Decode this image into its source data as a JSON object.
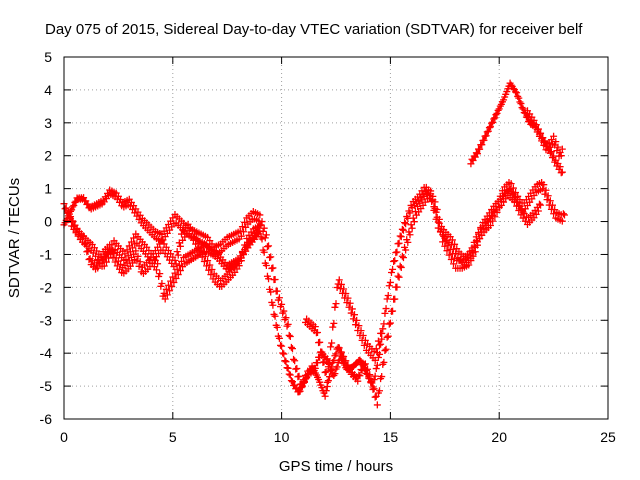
{
  "chart_data": {
    "type": "scatter",
    "title": "Day 075 of 2015, Sidereal Day-to-day VTEC variation (SDTVAR) for receiver belf",
    "xlabel": "GPS time / hours",
    "ylabel": "SDTVAR / TECUs",
    "xlim": [
      0,
      25
    ],
    "ylim": [
      -6,
      5
    ],
    "xticks": [
      0,
      5,
      10,
      15,
      20,
      25
    ],
    "yticks": [
      -6,
      -5,
      -4,
      -3,
      -2,
      -1,
      0,
      1,
      2,
      3,
      4,
      5
    ],
    "xtick_labels": [
      "0",
      "5",
      "10",
      "15",
      "20",
      "25"
    ],
    "ytick_labels": [
      "-6",
      "-5",
      "-4",
      "-3",
      "-2",
      "-1",
      "0",
      "1",
      "2",
      "3",
      "4",
      "5"
    ],
    "grid": true,
    "grid_style": "dotted",
    "marker": "plus",
    "color": "#ff0000",
    "series": [
      {
        "x": [
          0.0,
          0.3,
          0.6,
          0.9,
          1.2,
          1.5,
          1.8,
          2.1,
          2.4,
          2.7,
          3.0,
          3.3,
          3.6,
          3.9,
          4.2,
          4.5,
          4.8,
          5.1,
          5.4,
          5.7,
          6.0,
          6.3,
          6.6,
          6.9,
          7.2,
          7.5,
          7.8,
          8.1,
          8.4,
          8.7,
          9.0,
          9.3,
          9.6,
          9.8,
          10.0,
          10.3,
          10.6,
          10.9,
          11.2,
          11.5,
          11.8,
          12.1,
          12.4,
          12.7,
          13.0,
          13.3,
          13.6,
          13.9,
          14.2,
          14.5,
          14.8,
          15.1,
          15.4,
          15.7,
          16.0,
          16.3,
          16.6,
          16.9,
          17.2,
          17.5,
          17.8,
          18.1,
          18.4,
          18.7,
          19.0,
          19.3,
          19.6,
          19.9,
          20.2,
          20.5,
          20.8,
          21.1,
          21.4,
          21.7,
          22.0,
          22.3,
          22.6,
          22.9,
          23.0
        ],
        "y": [
          -0.1,
          0.3,
          0.7,
          0.7,
          0.4,
          0.5,
          0.6,
          0.9,
          0.8,
          0.5,
          0.6,
          0.3,
          0.0,
          -0.2,
          -0.4,
          -0.5,
          -0.2,
          0.1,
          -0.1,
          -0.3,
          -0.4,
          -0.5,
          -0.6,
          -0.9,
          -0.8,
          -0.6,
          -0.5,
          -0.4,
          0.0,
          0.2,
          0.1,
          -0.5,
          -1.5,
          -2.2,
          -2.6,
          -3.2,
          -4.3,
          -5.0,
          -4.6,
          -4.5,
          -4.0,
          -4.2,
          -4.7,
          -4.1,
          -4.5,
          -4.4,
          -4.2,
          -4.6,
          -5.0,
          -4.0,
          -2.6,
          -1.4,
          -0.6,
          0.0,
          0.5,
          0.7,
          1.0,
          0.7,
          -0.1,
          -0.4,
          -0.6,
          -1.0,
          -1.2,
          -1.0,
          -0.5,
          -0.2,
          0.0,
          0.4,
          0.9,
          1.1,
          0.7,
          0.4,
          0.7,
          1.0,
          1.1,
          0.6,
          0.2,
          0.1,
          0.2
        ]
      },
      {
        "x": [
          0.0,
          0.3,
          0.6,
          0.9,
          1.2,
          1.5,
          1.8,
          2.1,
          2.4,
          2.7,
          3.0,
          3.3,
          3.6,
          3.9,
          4.2,
          4.5,
          4.8,
          5.1,
          5.4,
          5.7,
          6.0,
          6.3,
          6.6,
          6.9,
          7.2,
          7.5,
          7.8,
          8.1,
          8.4,
          8.7,
          9.0,
          9.3,
          9.6,
          9.9,
          10.2,
          10.5,
          10.8,
          11.1,
          11.4,
          11.7,
          12.0,
          12.3,
          12.6,
          12.9,
          13.2,
          13.5,
          13.8,
          14.1,
          14.4,
          14.7,
          15.0,
          15.3,
          15.6,
          15.9,
          16.2,
          16.5,
          16.8,
          17.1,
          17.4,
          17.7,
          18.0,
          18.3,
          18.6,
          18.9,
          19.2,
          19.5,
          19.8,
          20.1,
          20.4,
          20.7,
          21.0,
          21.3,
          21.6,
          21.9
        ],
        "y": [
          0.5,
          0.1,
          -0.3,
          -0.5,
          -1.2,
          -1.4,
          -1.0,
          -0.8,
          -1.2,
          -1.5,
          -1.3,
          -1.0,
          -1.5,
          -1.3,
          -1.0,
          -0.7,
          -1.0,
          -1.3,
          -0.5,
          -0.2,
          -0.5,
          -0.9,
          -1.3,
          -1.7,
          -1.9,
          -1.7,
          -1.5,
          -1.2,
          -0.6,
          -0.3,
          -0.2,
          -1.4,
          -2.6,
          -3.6,
          -4.3,
          -4.9,
          -5.2,
          -4.8,
          -4.4,
          -4.8,
          -5.3,
          -4.4,
          -3.8,
          -4.2,
          -4.6,
          -4.8,
          -4.3,
          -4.8,
          -5.5,
          -4.2,
          -3.0,
          -1.9,
          -1.0,
          -0.3,
          0.3,
          0.6,
          0.9,
          0.4,
          -0.5,
          -0.9,
          -1.3,
          -1.3,
          -1.2,
          -0.8,
          -0.2,
          0.1,
          0.4,
          0.6,
          0.9,
          0.7,
          0.3,
          0.0,
          0.2,
          0.5
        ]
      },
      {
        "x": [
          0.3,
          0.8,
          1.3,
          1.8,
          2.3,
          2.8,
          3.3,
          3.8,
          4.3,
          4.6,
          5.0,
          5.5,
          6.0,
          6.5,
          7.0,
          7.5,
          8.0,
          8.5,
          9.0
        ],
        "y": [
          0.0,
          -0.5,
          -0.8,
          -1.3,
          -0.7,
          -1.1,
          -0.5,
          -0.9,
          -1.4,
          -2.3,
          -1.8,
          -1.2,
          -1.0,
          -0.8,
          -1.0,
          -1.4,
          -1.2,
          -0.7,
          -0.3
        ]
      },
      {
        "x": [
          11.1,
          11.6,
          12.1,
          12.6,
          13.1,
          13.5,
          13.9,
          14.3,
          14.6
        ],
        "y": [
          -3.0,
          -3.3,
          -4.8,
          -1.8,
          -2.5,
          -3.2,
          -3.8,
          -4.1,
          -3.4
        ]
      },
      {
        "x": [
          18.7,
          19.0,
          19.3,
          19.6,
          19.9,
          20.2,
          20.5,
          20.8,
          21.1,
          21.4,
          21.7,
          22.0,
          22.3,
          22.6,
          22.9
        ],
        "y": [
          1.8,
          2.1,
          2.5,
          2.9,
          3.3,
          3.7,
          4.2,
          3.9,
          3.4,
          3.0,
          2.9,
          2.5,
          2.2,
          1.8,
          1.5
        ]
      },
      {
        "x": [
          21.3,
          21.6,
          21.9,
          22.2,
          22.5,
          22.8,
          22.9
        ],
        "y": [
          3.3,
          3.0,
          2.6,
          2.2,
          2.5,
          2.0,
          2.2
        ]
      }
    ]
  }
}
